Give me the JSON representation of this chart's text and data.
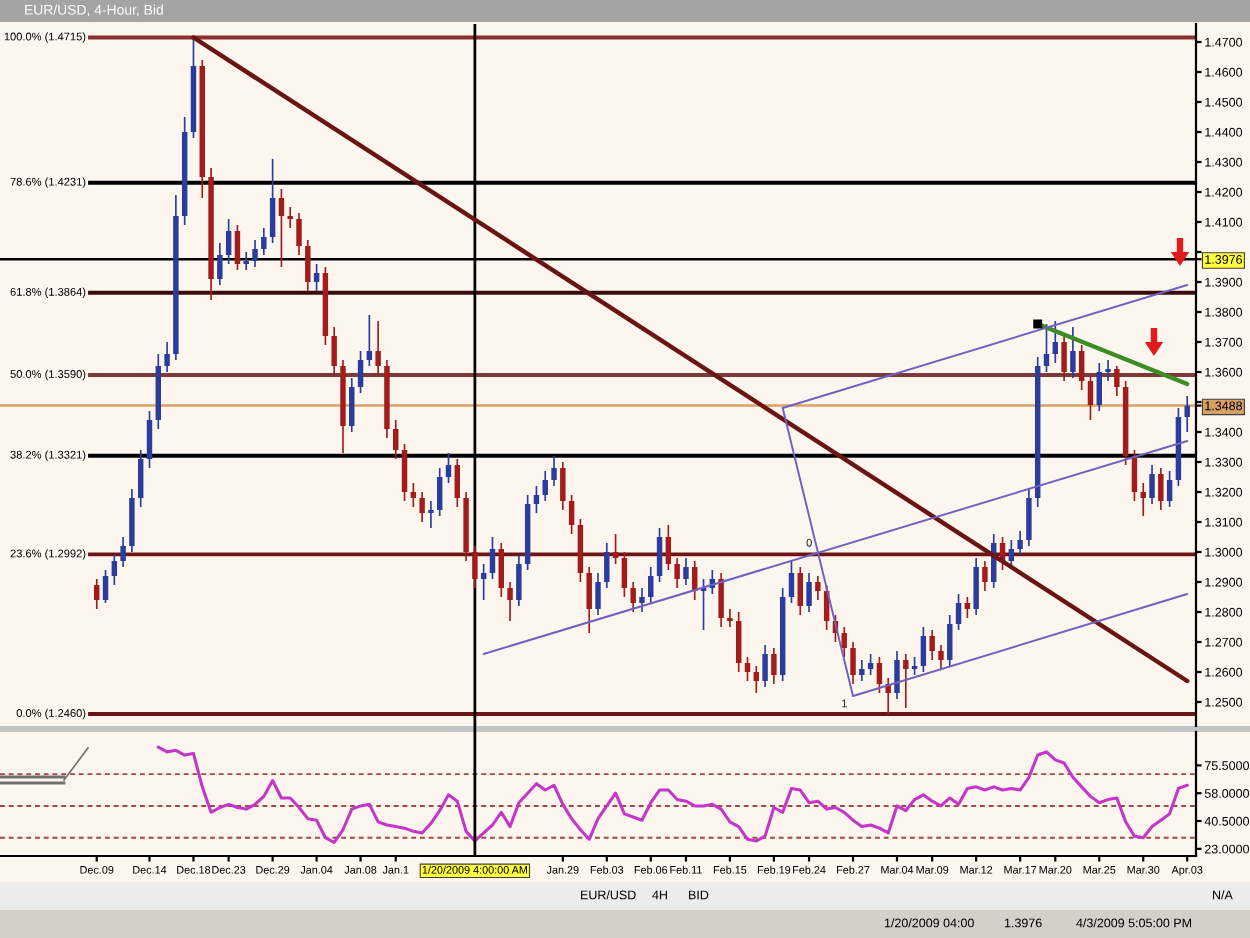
{
  "chart_data": [
    {
      "type": "candlestick",
      "title": "EUR/USD, 4-Hour, Bid",
      "categories": [
        "Dec.09",
        null,
        null,
        null,
        null,
        null,
        "Dec.14",
        null,
        null,
        null,
        null,
        "Dec.18",
        null,
        null,
        null,
        "Dec.23",
        null,
        null,
        null,
        null,
        "Dec.29",
        null,
        null,
        null,
        null,
        "Jan.04",
        null,
        null,
        null,
        null,
        "Jan.08",
        null,
        null,
        null,
        "Jan.1",
        null,
        null,
        null,
        null,
        null,
        null,
        null,
        null,
        "1/20/2009 4:00:00 AM",
        null,
        null,
        null,
        null,
        null,
        null,
        null,
        null,
        null,
        "Jan.29",
        null,
        null,
        null,
        null,
        "Feb.03",
        null,
        null,
        null,
        null,
        "Feb.06",
        null,
        null,
        null,
        "Feb.11",
        null,
        null,
        null,
        null,
        "Feb.15",
        null,
        null,
        null,
        null,
        "Feb.19",
        null,
        null,
        null,
        "Feb.24",
        null,
        null,
        null,
        null,
        "Feb.27",
        null,
        null,
        null,
        null,
        "Mar.04",
        null,
        null,
        null,
        "Mar.09",
        null,
        null,
        null,
        null,
        "Mar.12",
        null,
        null,
        null,
        null,
        "Mar.17",
        null,
        null,
        null,
        "Mar.20",
        null,
        null,
        null,
        null,
        "Mar.25",
        null,
        null,
        null,
        null,
        "Mar.30",
        null,
        null,
        null,
        null,
        "Apr.03"
      ],
      "ohlc": [
        [
          1.289,
          1.291,
          1.281,
          1.284
        ],
        [
          1.284,
          1.294,
          1.283,
          1.292
        ],
        [
          1.292,
          1.299,
          1.289,
          1.297
        ],
        [
          1.297,
          1.305,
          1.295,
          1.302
        ],
        [
          1.302,
          1.321,
          1.3,
          1.318
        ],
        [
          1.318,
          1.334,
          1.315,
          1.331
        ],
        [
          1.331,
          1.347,
          1.328,
          1.344
        ],
        [
          1.344,
          1.366,
          1.341,
          1.362
        ],
        [
          1.362,
          1.37,
          1.36,
          1.366
        ],
        [
          1.366,
          1.419,
          1.364,
          1.412
        ],
        [
          1.412,
          1.445,
          1.409,
          1.44
        ],
        [
          1.44,
          1.4715,
          1.438,
          1.462
        ],
        [
          1.462,
          1.464,
          1.418,
          1.425
        ],
        [
          1.425,
          1.428,
          1.384,
          1.391
        ],
        [
          1.391,
          1.403,
          1.389,
          1.399
        ],
        [
          1.399,
          1.411,
          1.396,
          1.407
        ],
        [
          1.407,
          1.409,
          1.394,
          1.396
        ],
        [
          1.396,
          1.4,
          1.394,
          1.397
        ],
        [
          1.397,
          1.404,
          1.395,
          1.401
        ],
        [
          1.401,
          1.408,
          1.399,
          1.405
        ],
        [
          1.405,
          1.431,
          1.403,
          1.418
        ],
        [
          1.418,
          1.421,
          1.395,
          1.412
        ],
        [
          1.412,
          1.415,
          1.408,
          1.411
        ],
        [
          1.411,
          1.413,
          1.399,
          1.402
        ],
        [
          1.402,
          1.404,
          1.387,
          1.39
        ],
        [
          1.39,
          1.396,
          1.387,
          1.393
        ],
        [
          1.393,
          1.395,
          1.369,
          1.372
        ],
        [
          1.372,
          1.375,
          1.359,
          1.362
        ],
        [
          1.362,
          1.364,
          1.333,
          1.342
        ],
        [
          1.342,
          1.358,
          1.34,
          1.355
        ],
        [
          1.355,
          1.367,
          1.353,
          1.364
        ],
        [
          1.364,
          1.379,
          1.362,
          1.367
        ],
        [
          1.367,
          1.377,
          1.359,
          1.362
        ],
        [
          1.362,
          1.364,
          1.338,
          1.341
        ],
        [
          1.341,
          1.344,
          1.331,
          1.334
        ],
        [
          1.334,
          1.336,
          1.317,
          1.32
        ],
        [
          1.32,
          1.323,
          1.315,
          1.318
        ],
        [
          1.318,
          1.32,
          1.31,
          1.313
        ],
        [
          1.313,
          1.317,
          1.308,
          1.314
        ],
        [
          1.314,
          1.328,
          1.312,
          1.325
        ],
        [
          1.325,
          1.333,
          1.323,
          1.329
        ],
        [
          1.329,
          1.331,
          1.315,
          1.318
        ],
        [
          1.318,
          1.32,
          1.297,
          1.3
        ],
        [
          1.3,
          1.302,
          1.288,
          1.291
        ],
        [
          1.291,
          1.296,
          1.284,
          1.293
        ],
        [
          1.293,
          1.305,
          1.291,
          1.301
        ],
        [
          1.301,
          1.303,
          1.285,
          1.288
        ],
        [
          1.288,
          1.29,
          1.277,
          1.284
        ],
        [
          1.284,
          1.299,
          1.282,
          1.296
        ],
        [
          1.296,
          1.319,
          1.294,
          1.316
        ],
        [
          1.316,
          1.322,
          1.313,
          1.319
        ],
        [
          1.319,
          1.327,
          1.317,
          1.324
        ],
        [
          1.324,
          1.332,
          1.322,
          1.328
        ],
        [
          1.328,
          1.33,
          1.314,
          1.317
        ],
        [
          1.317,
          1.319,
          1.306,
          1.309
        ],
        [
          1.309,
          1.311,
          1.29,
          1.293
        ],
        [
          1.293,
          1.295,
          1.273,
          1.281
        ],
        [
          1.281,
          1.293,
          1.279,
          1.29
        ],
        [
          1.29,
          1.303,
          1.288,
          1.3
        ],
        [
          1.3,
          1.306,
          1.296,
          1.298
        ],
        [
          1.298,
          1.3,
          1.285,
          1.288
        ],
        [
          1.288,
          1.29,
          1.28,
          1.283
        ],
        [
          1.283,
          1.288,
          1.28,
          1.285
        ],
        [
          1.285,
          1.295,
          1.283,
          1.292
        ],
        [
          1.292,
          1.308,
          1.29,
          1.305
        ],
        [
          1.305,
          1.309,
          1.294,
          1.296
        ],
        [
          1.296,
          1.298,
          1.288,
          1.291
        ],
        [
          1.291,
          1.298,
          1.289,
          1.295
        ],
        [
          1.295,
          1.297,
          1.284,
          1.287
        ],
        [
          1.287,
          1.291,
          1.274,
          1.288
        ],
        [
          1.288,
          1.294,
          1.286,
          1.291
        ],
        [
          1.291,
          1.293,
          1.275,
          1.278
        ],
        [
          1.278,
          1.281,
          1.275,
          1.277
        ],
        [
          1.277,
          1.28,
          1.26,
          1.263
        ],
        [
          1.263,
          1.265,
          1.257,
          1.26
        ],
        [
          1.26,
          1.262,
          1.253,
          1.257
        ],
        [
          1.257,
          1.269,
          1.255,
          1.266
        ],
        [
          1.266,
          1.268,
          1.256,
          1.259
        ],
        [
          1.259,
          1.288,
          1.257,
          1.285
        ],
        [
          1.285,
          1.297,
          1.283,
          1.293
        ],
        [
          1.293,
          1.295,
          1.279,
          1.282
        ],
        [
          1.282,
          1.293,
          1.28,
          1.29
        ],
        [
          1.29,
          1.292,
          1.284,
          1.287
        ],
        [
          1.287,
          1.289,
          1.274,
          1.277
        ],
        [
          1.277,
          1.279,
          1.27,
          1.273
        ],
        [
          1.273,
          1.275,
          1.265,
          1.268
        ],
        [
          1.268,
          1.27,
          1.256,
          1.259
        ],
        [
          1.259,
          1.264,
          1.257,
          1.261
        ],
        [
          1.261,
          1.266,
          1.259,
          1.263
        ],
        [
          1.263,
          1.265,
          1.253,
          1.256
        ],
        [
          1.256,
          1.258,
          1.246,
          1.253
        ],
        [
          1.253,
          1.267,
          1.251,
          1.264
        ],
        [
          1.264,
          1.266,
          1.248,
          1.261
        ],
        [
          1.261,
          1.265,
          1.259,
          1.262
        ],
        [
          1.262,
          1.275,
          1.26,
          1.272
        ],
        [
          1.272,
          1.274,
          1.264,
          1.267
        ],
        [
          1.267,
          1.269,
          1.261,
          1.264
        ],
        [
          1.264,
          1.279,
          1.262,
          1.276
        ],
        [
          1.276,
          1.286,
          1.274,
          1.283
        ],
        [
          1.283,
          1.285,
          1.278,
          1.281
        ],
        [
          1.281,
          1.298,
          1.279,
          1.295
        ],
        [
          1.295,
          1.297,
          1.287,
          1.29
        ],
        [
          1.29,
          1.306,
          1.288,
          1.303
        ],
        [
          1.303,
          1.305,
          1.294,
          1.297
        ],
        [
          1.297,
          1.304,
          1.295,
          1.301
        ],
        [
          1.301,
          1.307,
          1.299,
          1.304
        ],
        [
          1.304,
          1.321,
          1.302,
          1.318
        ],
        [
          1.318,
          1.365,
          1.315,
          1.362
        ],
        [
          1.362,
          1.376,
          1.36,
          1.366
        ],
        [
          1.366,
          1.377,
          1.363,
          1.37
        ],
        [
          1.37,
          1.372,
          1.357,
          1.36
        ],
        [
          1.36,
          1.375,
          1.358,
          1.367
        ],
        [
          1.367,
          1.369,
          1.354,
          1.357
        ],
        [
          1.357,
          1.359,
          1.344,
          1.349
        ],
        [
          1.349,
          1.363,
          1.347,
          1.36
        ],
        [
          1.36,
          1.364,
          1.357,
          1.361
        ],
        [
          1.361,
          1.362,
          1.352,
          1.355
        ],
        [
          1.355,
          1.357,
          1.329,
          1.332
        ],
        [
          1.332,
          1.334,
          1.317,
          1.32
        ],
        [
          1.32,
          1.323,
          1.312,
          1.318
        ],
        [
          1.318,
          1.329,
          1.316,
          1.326
        ],
        [
          1.326,
          1.328,
          1.314,
          1.317
        ],
        [
          1.317,
          1.327,
          1.315,
          1.324
        ],
        [
          1.324,
          1.348,
          1.322,
          1.345
        ],
        [
          1.345,
          1.352,
          1.34,
          1.3488
        ]
      ],
      "colors": [
        "#a31c1c",
        "#2a3d9c",
        "#2a3d9c",
        "#2a3d9c",
        "#2a3d9c",
        "#2a3d9c",
        "#2a3d9c",
        "#2a3d9c",
        "#2a3d9c",
        "#2a3d9c",
        "#2a3d9c",
        "#2a3d9c",
        "#a31c1c",
        "#a31c1c",
        "#2a3d9c",
        "#2a3d9c",
        "#a31c1c",
        "#2a3d9c",
        "#2a3d9c",
        "#2a3d9c",
        "#2a3d9c",
        "#a31c1c",
        "#a31c1c",
        "#a31c1c",
        "#a31c1c",
        "#2a3d9c",
        "#a31c1c",
        "#a31c1c",
        "#a31c1c",
        "#2a3d9c",
        "#2a3d9c",
        "#2a3d9c",
        "#a31c1c",
        "#a31c1c",
        "#a31c1c",
        "#a31c1c",
        "#a31c1c",
        "#a31c1c",
        "#2a3d9c",
        "#2a3d9c",
        "#2a3d9c",
        "#a31c1c",
        "#a31c1c",
        "#a31c1c",
        "#2a3d9c",
        "#2a3d9c",
        "#a31c1c",
        "#a31c1c",
        "#2a3d9c",
        "#2a3d9c",
        "#2a3d9c",
        "#2a3d9c",
        "#2a3d9c",
        "#a31c1c",
        "#a31c1c",
        "#a31c1c",
        "#a31c1c",
        "#2a3d9c",
        "#2a3d9c",
        "#a31c1c",
        "#a31c1c",
        "#a31c1c",
        "#2a3d9c",
        "#2a3d9c",
        "#2a3d9c",
        "#a31c1c",
        "#a31c1c",
        "#2a3d9c",
        "#a31c1c",
        "#2a3d9c",
        "#2a3d9c",
        "#a31c1c",
        "#a31c1c",
        "#a31c1c",
        "#a31c1c",
        "#a31c1c",
        "#2a3d9c",
        "#a31c1c",
        "#2a3d9c",
        "#2a3d9c",
        "#a31c1c",
        "#2a3d9c",
        "#a31c1c",
        "#a31c1c",
        "#a31c1c",
        "#a31c1c",
        "#a31c1c",
        "#2a3d9c",
        "#2a3d9c",
        "#a31c1c",
        "#a31c1c",
        "#2a3d9c",
        "#a31c1c",
        "#2a3d9c",
        "#2a3d9c",
        "#a31c1c",
        "#a31c1c",
        "#2a3d9c",
        "#2a3d9c",
        "#a31c1c",
        "#2a3d9c",
        "#a31c1c",
        "#2a3d9c",
        "#a31c1c",
        "#2a3d9c",
        "#2a3d9c",
        "#2a3d9c",
        "#2a3d9c",
        "#2a3d9c",
        "#2a3d9c",
        "#a31c1c",
        "#2a3d9c",
        "#a31c1c",
        "#a31c1c",
        "#2a3d9c",
        "#2a3d9c",
        "#a31c1c",
        "#a31c1c",
        "#a31c1c",
        "#a31c1c",
        "#2a3d9c",
        "#a31c1c",
        "#2a3d9c",
        "#2a3d9c",
        "#2a3d9c"
      ],
      "series": [
        {
          "type": "line",
          "color": "#6b1414",
          "values": [
            null,
            null,
            null,
            null,
            null,
            null,
            null,
            null,
            null,
            null,
            null,
            1.4715,
            null,
            null,
            null,
            null,
            null,
            null,
            null,
            null,
            null,
            null,
            null,
            null,
            null,
            null,
            null,
            null,
            null,
            null,
            null,
            null,
            null,
            null,
            null,
            null,
            null,
            null,
            null,
            null,
            null,
            null,
            null,
            null,
            null,
            null,
            null,
            null,
            null,
            null,
            null,
            null,
            null,
            null,
            null,
            null,
            null,
            null,
            null,
            null,
            null,
            null,
            null,
            null,
            null,
            null,
            null,
            null,
            null,
            null,
            null,
            null,
            null,
            null,
            null,
            null,
            null,
            null,
            null,
            null,
            null,
            null,
            null,
            null,
            null,
            null,
            null,
            null,
            null,
            null,
            null,
            null,
            null,
            null,
            null,
            null,
            null,
            null,
            null,
            null,
            null,
            null,
            null,
            null,
            null,
            null,
            null,
            null,
            null,
            null,
            null,
            null,
            null,
            null,
            null,
            null,
            null,
            null,
            null,
            null,
            null,
            null,
            null,
            null,
            1.257
          ]
        },
        {
          "type": "line",
          "color": "#3c8c28",
          "values": [
            null,
            null,
            null,
            null,
            null,
            null,
            null,
            null,
            null,
            null,
            null,
            null,
            null,
            null,
            null,
            null,
            null,
            null,
            null,
            null,
            null,
            null,
            null,
            null,
            null,
            null,
            null,
            null,
            null,
            null,
            null,
            null,
            null,
            null,
            null,
            null,
            null,
            null,
            null,
            null,
            null,
            null,
            null,
            null,
            null,
            null,
            null,
            null,
            null,
            null,
            null,
            null,
            null,
            null,
            null,
            null,
            null,
            null,
            null,
            null,
            null,
            null,
            null,
            null,
            null,
            null,
            null,
            null,
            null,
            null,
            null,
            null,
            null,
            null,
            null,
            null,
            null,
            null,
            null,
            null,
            null,
            null,
            null,
            null,
            null,
            null,
            null,
            null,
            null,
            null,
            null,
            null,
            null,
            null,
            null,
            null,
            null,
            null,
            null,
            null,
            null,
            null,
            null,
            null,
            null,
            null,
            null,
            1.376,
            null,
            null,
            null,
            null,
            null,
            null,
            null,
            null,
            null,
            null,
            null,
            null,
            null,
            null,
            null,
            null,
            1.356
          ]
        },
        {
          "type": "line",
          "color": "#7060c0",
          "values": [
            null,
            null,
            null,
            null,
            null,
            null,
            null,
            null,
            null,
            null,
            null,
            null,
            null,
            null,
            null,
            null,
            null,
            null,
            null,
            null,
            null,
            null,
            null,
            null,
            null,
            null,
            null,
            null,
            null,
            null,
            null,
            null,
            null,
            null,
            null,
            null,
            null,
            null,
            null,
            null,
            null,
            null,
            null,
            null,
            1.266,
            null,
            null,
            null,
            null,
            null,
            null,
            null,
            null,
            null,
            null,
            null,
            null,
            null,
            null,
            null,
            null,
            null,
            null,
            null,
            null,
            null,
            null,
            null,
            null,
            null,
            null,
            null,
            null,
            null,
            null,
            null,
            null,
            null,
            null,
            null,
            null,
            null,
            null,
            null,
            null,
            null,
            null,
            null,
            null,
            null,
            null,
            null,
            null,
            null,
            null,
            null,
            null,
            null,
            null,
            null,
            null,
            null,
            null,
            null,
            null,
            null,
            null,
            null,
            null,
            null,
            null,
            null,
            null,
            null,
            null,
            null,
            null,
            null,
            null,
            null,
            null,
            null,
            null,
            null,
            1.337
          ]
        },
        {
          "type": "line",
          "color": "#7060c0",
          "values": [
            null,
            null,
            null,
            null,
            null,
            null,
            null,
            null,
            null,
            null,
            null,
            null,
            null,
            null,
            null,
            null,
            null,
            null,
            null,
            null,
            null,
            null,
            null,
            null,
            null,
            null,
            null,
            null,
            null,
            null,
            null,
            null,
            null,
            null,
            null,
            null,
            null,
            null,
            null,
            null,
            null,
            null,
            null,
            null,
            null,
            null,
            null,
            null,
            null,
            null,
            null,
            null,
            null,
            null,
            null,
            null,
            null,
            null,
            null,
            null,
            null,
            null,
            null,
            null,
            null,
            null,
            null,
            null,
            null,
            null,
            null,
            null,
            null,
            null,
            null,
            null,
            null,
            null,
            1.348,
            null,
            null,
            null,
            null,
            null,
            null,
            null,
            null,
            null,
            null,
            null,
            null,
            null,
            null,
            null,
            null,
            null,
            null,
            null,
            null,
            null,
            null,
            null,
            null,
            null,
            null,
            null,
            null,
            null,
            null,
            null,
            null,
            null,
            null,
            null,
            null,
            null,
            null,
            null,
            null,
            null,
            null,
            null,
            null,
            null,
            1.389
          ]
        },
        {
          "type": "line",
          "color": "#7060c0",
          "values": [
            null,
            null,
            null,
            null,
            null,
            null,
            null,
            null,
            null,
            null,
            null,
            null,
            null,
            null,
            null,
            null,
            null,
            null,
            null,
            null,
            null,
            null,
            null,
            null,
            null,
            null,
            null,
            null,
            null,
            null,
            null,
            null,
            null,
            null,
            null,
            null,
            null,
            null,
            null,
            null,
            null,
            null,
            null,
            null,
            null,
            null,
            null,
            null,
            null,
            null,
            null,
            null,
            null,
            null,
            null,
            null,
            null,
            null,
            null,
            null,
            null,
            null,
            null,
            null,
            null,
            null,
            null,
            null,
            null,
            null,
            null,
            null,
            null,
            null,
            null,
            null,
            null,
            null,
            null,
            null,
            null,
            null,
            null,
            null,
            null,
            null,
            1.252,
            null,
            null,
            null,
            null,
            null,
            null,
            null,
            null,
            null,
            null,
            null,
            null,
            null,
            null,
            null,
            null,
            null,
            null,
            null,
            null,
            null,
            null,
            null,
            null,
            null,
            null,
            null,
            null,
            null,
            null,
            null,
            null,
            null,
            null,
            null,
            null,
            null,
            1.286
          ]
        },
        {
          "type": "line",
          "color": "#7060c0",
          "values": [
            null,
            null,
            null,
            null,
            null,
            null,
            null,
            null,
            null,
            null,
            null,
            null,
            null,
            null,
            null,
            null,
            null,
            null,
            null,
            null,
            null,
            null,
            null,
            null,
            null,
            null,
            null,
            null,
            null,
            null,
            null,
            null,
            null,
            null,
            null,
            null,
            null,
            null,
            null,
            null,
            null,
            null,
            null,
            null,
            null,
            null,
            null,
            null,
            null,
            null,
            null,
            null,
            null,
            null,
            null,
            null,
            null,
            null,
            null,
            null,
            null,
            null,
            null,
            null,
            null,
            null,
            null,
            null,
            null,
            null,
            null,
            null,
            null,
            null,
            null,
            null,
            null,
            null,
            1.348,
            null,
            null,
            null,
            null,
            null,
            null,
            null,
            1.252,
            null,
            null,
            null,
            null,
            null,
            null,
            null,
            null,
            null,
            null,
            null,
            null,
            null,
            null,
            null,
            null,
            null,
            null,
            null,
            null,
            null,
            null,
            null,
            null,
            null,
            null,
            null,
            null,
            null,
            null,
            null,
            null,
            null,
            null,
            null,
            null,
            null,
            null
          ]
        }
      ],
      "ylim": [
        1.242,
        1.476
      ],
      "yticks": [
        {
          "value": 1.25,
          "label": "1.2500"
        },
        {
          "value": 1.26,
          "label": "1.2600"
        },
        {
          "value": 1.27,
          "label": "1.2700"
        },
        {
          "value": 1.28,
          "label": "1.2800"
        },
        {
          "value": 1.29,
          "label": "1.2900"
        },
        {
          "value": 1.3,
          "label": "1.3000"
        },
        {
          "value": 1.31,
          "label": "1.3100"
        },
        {
          "value": 1.32,
          "label": "1.3200"
        },
        {
          "value": 1.33,
          "label": "1.3300"
        },
        {
          "value": 1.34,
          "label": "1.3400"
        },
        {
          "value": 1.3488,
          "label": "1.3488"
        },
        {
          "value": 1.35,
          "label": null
        },
        {
          "value": 1.36,
          "label": "1.3600"
        },
        {
          "value": 1.37,
          "label": "1.3700"
        },
        {
          "value": 1.38,
          "label": "1.3800"
        },
        {
          "value": 1.39,
          "label": "1.3900"
        },
        {
          "value": 1.3976,
          "label": "1.3976"
        },
        {
          "value": 1.4,
          "label": null
        },
        {
          "value": 1.41,
          "label": "1.4100"
        },
        {
          "value": 1.42,
          "label": "1.4200"
        },
        {
          "value": 1.43,
          "label": "1.4300"
        },
        {
          "value": 1.44,
          "label": "1.4400"
        },
        {
          "value": 1.45,
          "label": "1.4500"
        },
        {
          "value": 1.46,
          "label": "1.4600"
        },
        {
          "value": 1.47,
          "label": "1.4700"
        }
      ],
      "tick_labels": "y",
      "ref_lines": [
        {
          "axis": "y",
          "value": 1.4715,
          "label": "100.0% (1.4715)",
          "color": "#8b2e2e"
        },
        {
          "axis": "y",
          "value": 1.4231,
          "label": "78.6% (1.4231)",
          "color": "#000000"
        },
        {
          "axis": "y",
          "value": 1.3864,
          "label": "61.8% (1.3864)",
          "color": "#3a0c0c"
        },
        {
          "axis": "y",
          "value": 1.359,
          "label": "50.0% (1.3590)",
          "color": "#7d3a3a"
        },
        {
          "axis": "y",
          "value": 1.3321,
          "label": "38.2% (1.3321)",
          "color": "#000000"
        },
        {
          "axis": "y",
          "value": 1.2992,
          "label": "23.6% (1.2992)",
          "color": "#6e1616"
        },
        {
          "axis": "y",
          "value": 1.246,
          "label": "0.0% (1.2460)",
          "color": "#6e1616"
        },
        {
          "axis": "y",
          "value": 1.3976,
          "color": "#000000"
        },
        {
          "axis": "y",
          "value": 1.3488,
          "color": "#d9a066"
        },
        {
          "axis": "x",
          "value": "1/20/2009 4:00:00 AM",
          "color": "#000000"
        }
      ],
      "annotations": [
        "0",
        "1"
      ]
    },
    {
      "type": "line",
      "categories": [
        "Dec.09",
        null,
        null,
        null,
        null,
        null,
        "Dec.14",
        null,
        null,
        null,
        null,
        "Dec.18",
        null,
        null,
        null,
        "Dec.23",
        null,
        null,
        null,
        null,
        "Dec.29",
        null,
        null,
        null,
        null,
        "Jan.04",
        null,
        null,
        null,
        null,
        "Jan.08",
        null,
        null,
        null,
        "Jan.1",
        null,
        null,
        null,
        null,
        null,
        null,
        null,
        null,
        "1/20/2009 4:00:00 AM",
        null,
        null,
        null,
        null,
        null,
        null,
        null,
        null,
        null,
        "Jan.29",
        null,
        null,
        null,
        null,
        "Feb.03",
        null,
        null,
        null,
        null,
        "Feb.06",
        null,
        null,
        null,
        "Feb.11",
        null,
        null,
        null,
        null,
        "Feb.15",
        null,
        null,
        null,
        null,
        "Feb.19",
        null,
        null,
        null,
        "Feb.24",
        null,
        null,
        null,
        null,
        "Feb.27",
        null,
        null,
        null,
        null,
        "Mar.04",
        null,
        null,
        null,
        "Mar.09",
        null,
        null,
        null,
        null,
        "Mar.12",
        null,
        null,
        null,
        null,
        "Mar.17",
        null,
        null,
        null,
        "Mar.20",
        null,
        null,
        null,
        null,
        "Mar.25",
        null,
        null,
        null,
        null,
        "Mar.30",
        null,
        null,
        null,
        null,
        "Apr.03"
      ],
      "series": [
        {
          "color": "#c436c8",
          "values": [
            null,
            null,
            null,
            null,
            null,
            null,
            null,
            87,
            84,
            85,
            82,
            83,
            62,
            46,
            49,
            51,
            49,
            48,
            51,
            56,
            66,
            55,
            55,
            49,
            42,
            41,
            30,
            27,
            35,
            48,
            50,
            51,
            40,
            38,
            37,
            36,
            34,
            33,
            39,
            47,
            57,
            53,
            34,
            28,
            33,
            38,
            46,
            37,
            52,
            58,
            64,
            60,
            63,
            51,
            42,
            35,
            29,
            42,
            50,
            58,
            45,
            43,
            41,
            52,
            60,
            60,
            54,
            53,
            50,
            50,
            51,
            48,
            40,
            37,
            29,
            28,
            31,
            49,
            46,
            61,
            60,
            52,
            53,
            48,
            49,
            46,
            41,
            37,
            38,
            36,
            33,
            50,
            47,
            54,
            57,
            53,
            50,
            55,
            51,
            61,
            62,
            60,
            62,
            60,
            61,
            60,
            68,
            82,
            84,
            79,
            77,
            68,
            62,
            56,
            52,
            54,
            55,
            40,
            31,
            30,
            37,
            41,
            45,
            61,
            63
          ]
        }
      ],
      "ylim": [
        18.5,
        96.5
      ],
      "yticks": [
        {
          "value": 23,
          "label": "23.0000"
        },
        {
          "value": 40.5,
          "label": "40.5000"
        },
        {
          "value": 58,
          "label": "58.0000"
        },
        {
          "value": 75.5,
          "label": "75.5000"
        }
      ],
      "ref_lines": [
        {
          "axis": "y",
          "value": 70,
          "color": "#a04848",
          "line_style": "dashed"
        },
        {
          "axis": "y",
          "value": 50,
          "color": "#a04848",
          "line_style": "dashed"
        },
        {
          "axis": "y",
          "value": 30,
          "color": "#a04848",
          "line_style": "dashed"
        }
      ],
      "annotations": [
        "EUR/USD",
        "4H",
        "BID",
        "N/A",
        "1/20/2009 04:00",
        "1.3976",
        "4/3/2009 5:05:00 PM"
      ]
    }
  ]
}
